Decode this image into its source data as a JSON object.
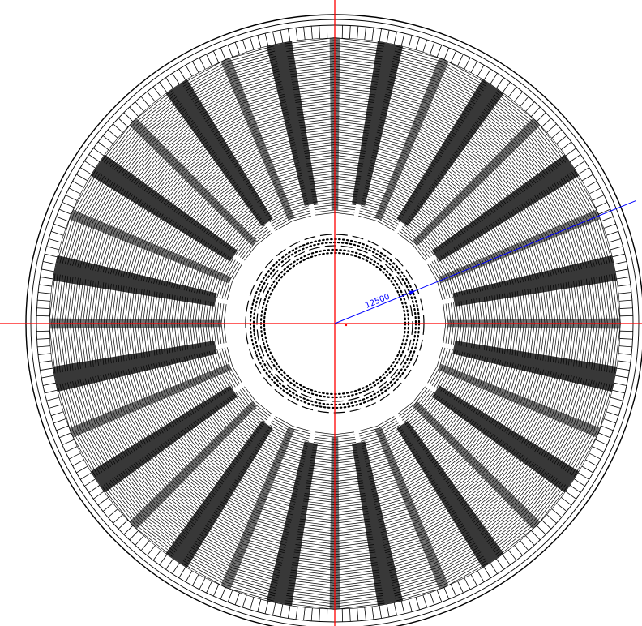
{
  "drawing": {
    "type": "radial-sector-disc",
    "sector_count": 16,
    "colors": {
      "background": "#ffffff",
      "linework": "#000000",
      "axis_lines": "#ff0000",
      "dimension": "#0000ff"
    }
  },
  "dimension": {
    "radius_label": "12500"
  }
}
